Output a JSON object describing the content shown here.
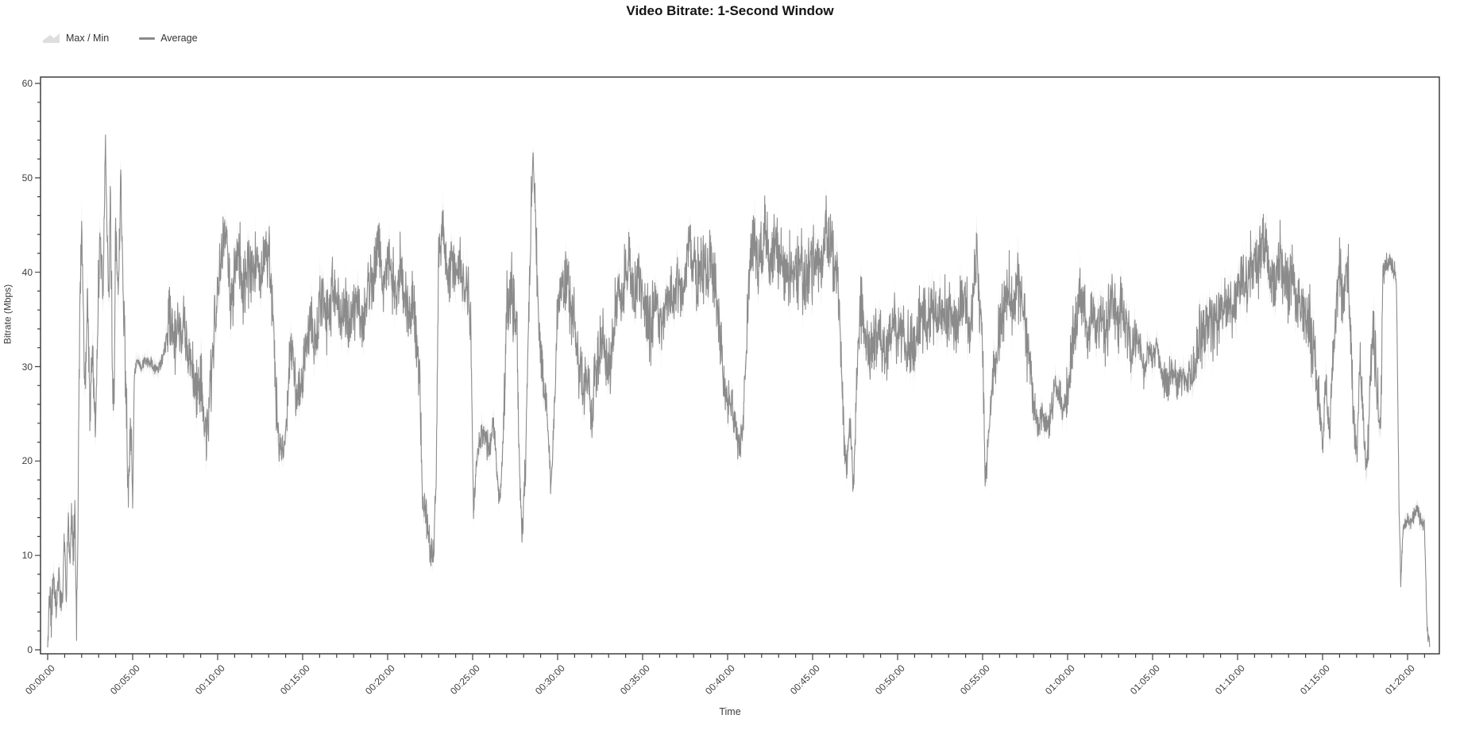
{
  "chart_data": {
    "type": "line",
    "title": "Video Bitrate: 1-Second Window",
    "xlabel": "Time",
    "ylabel": "Bitrate (Mbps)",
    "legend": [
      {
        "label": "Max / Min",
        "swatch": "band-area-icon"
      },
      {
        "label": "Average",
        "swatch": "line-icon"
      }
    ],
    "colors": {
      "band": "#e8e8e8",
      "line": "#8b8b8b",
      "axis": "#3f3f3f",
      "text": "#3d3d3d",
      "title": "#141414"
    },
    "ylim": [
      0,
      60.8
    ],
    "xlim_minutes": [
      0,
      81.7
    ],
    "y_ticks": [
      0,
      10,
      20,
      30,
      40,
      50,
      60
    ],
    "y_minor_step": 2,
    "x_minor_step_minutes": 1,
    "x_ticks": [
      {
        "t": 0,
        "label": "00:00:00"
      },
      {
        "t": 5,
        "label": "00:05:00"
      },
      {
        "t": 10,
        "label": "00:10:00"
      },
      {
        "t": 15,
        "label": "00:15:00"
      },
      {
        "t": 20,
        "label": "00:20:00"
      },
      {
        "t": 25,
        "label": "00:25:00"
      },
      {
        "t": 30,
        "label": "00:30:00"
      },
      {
        "t": 35,
        "label": "00:35:00"
      },
      {
        "t": 40,
        "label": "00:40:00"
      },
      {
        "t": 45,
        "label": "00:45:00"
      },
      {
        "t": 50,
        "label": "00:50:00"
      },
      {
        "t": 55,
        "label": "00:55:00"
      },
      {
        "t": 60,
        "label": "01:00:00"
      },
      {
        "t": 65,
        "label": "01:05:00"
      },
      {
        "t": 70,
        "label": "01:10:00"
      },
      {
        "t": 75,
        "label": "01:15:00"
      },
      {
        "t": 80,
        "label": "01:20:00"
      }
    ],
    "duration_minutes": 81.3,
    "sampling_seconds": 1,
    "texture": {
      "seed": 7,
      "default_amp": 2.6,
      "band_base": 0.55,
      "band_extra": 2.2,
      "smooth_ranges": [
        [
          0,
          1.8,
          1.6
        ],
        [
          3.3,
          3.5,
          1.0
        ],
        [
          4.95,
          6.95,
          0.55
        ],
        [
          13.55,
          14.05,
          1.2
        ],
        [
          22.0,
          22.95,
          1.5
        ],
        [
          24.95,
          26.8,
          1.2
        ],
        [
          27.7,
          28.3,
          1.5
        ],
        [
          28.45,
          28.65,
          0.8
        ],
        [
          29.25,
          29.95,
          1.3
        ],
        [
          39.6,
          41.1,
          1.8
        ],
        [
          46.7,
          47.7,
          1.8
        ],
        [
          55.05,
          55.6,
          1.5
        ],
        [
          57.9,
          59.9,
          1.4
        ],
        [
          64.0,
          67.4,
          1.5
        ],
        [
          74.7,
          75.7,
          1.8
        ],
        [
          76.7,
          77.9,
          1.9
        ],
        [
          78.5,
          79.45,
          0.9
        ],
        [
          79.45,
          81.05,
          0.6
        ],
        [
          81.05,
          81.3,
          0.4
        ]
      ]
    },
    "average_anchors_min_mbps": [
      [
        0,
        0.5
      ],
      [
        0.1,
        6
      ],
      [
        0.2,
        3.5
      ],
      [
        0.35,
        7.5
      ],
      [
        0.5,
        4
      ],
      [
        0.65,
        8
      ],
      [
        0.8,
        4.5
      ],
      [
        0.9,
        7
      ],
      [
        1,
        12
      ],
      [
        1.1,
        6
      ],
      [
        1.2,
        14
      ],
      [
        1.3,
        8
      ],
      [
        1.4,
        16
      ],
      [
        1.5,
        9
      ],
      [
        1.6,
        15
      ],
      [
        1.7,
        2.5
      ],
      [
        1.8,
        16
      ],
      [
        1.9,
        38
      ],
      [
        2,
        44
      ],
      [
        2.1,
        34
      ],
      [
        2.2,
        28
      ],
      [
        2.35,
        37
      ],
      [
        2.5,
        26
      ],
      [
        2.65,
        33
      ],
      [
        2.8,
        22
      ],
      [
        2.95,
        35
      ],
      [
        3.1,
        44
      ],
      [
        3.25,
        38
      ],
      [
        3.4,
        54
      ],
      [
        3.5,
        43
      ],
      [
        3.6,
        38
      ],
      [
        3.7,
        48
      ],
      [
        3.8,
        31
      ],
      [
        3.9,
        27
      ],
      [
        4,
        43
      ],
      [
        4.15,
        38
      ],
      [
        4.3,
        50
      ],
      [
        4.45,
        38
      ],
      [
        4.6,
        28
      ],
      [
        4.75,
        15
      ],
      [
        4.9,
        25
      ],
      [
        5,
        15
      ],
      [
        5.1,
        29
      ],
      [
        5.25,
        31
      ],
      [
        5.5,
        30
      ],
      [
        5.75,
        30.5
      ],
      [
        6,
        30.5
      ],
      [
        6.25,
        30
      ],
      [
        6.5,
        29.5
      ],
      [
        6.75,
        31
      ],
      [
        7,
        33
      ],
      [
        7.25,
        35.5
      ],
      [
        7.5,
        33
      ],
      [
        7.75,
        35
      ],
      [
        8,
        34
      ],
      [
        8.25,
        32
      ],
      [
        8.5,
        30
      ],
      [
        8.75,
        27
      ],
      [
        9,
        29
      ],
      [
        9.25,
        22
      ],
      [
        9.5,
        26
      ],
      [
        9.75,
        33
      ],
      [
        10,
        38
      ],
      [
        10.25,
        42
      ],
      [
        10.5,
        44
      ],
      [
        10.75,
        38
      ],
      [
        11,
        40
      ],
      [
        11.25,
        43
      ],
      [
        11.5,
        38
      ],
      [
        11.75,
        41
      ],
      [
        12,
        39
      ],
      [
        12.25,
        42
      ],
      [
        12.5,
        39
      ],
      [
        12.75,
        42
      ],
      [
        13,
        42
      ],
      [
        13.2,
        37
      ],
      [
        13.4,
        29
      ],
      [
        13.6,
        22
      ],
      [
        13.8,
        21
      ],
      [
        14,
        23
      ],
      [
        14.2,
        31
      ],
      [
        14.4,
        32
      ],
      [
        14.6,
        27
      ],
      [
        14.8,
        26
      ],
      [
        15,
        30
      ],
      [
        15.25,
        33
      ],
      [
        15.5,
        34
      ],
      [
        15.75,
        32
      ],
      [
        16,
        36
      ],
      [
        16.25,
        37
      ],
      [
        16.5,
        35
      ],
      [
        16.75,
        38
      ],
      [
        17,
        37
      ],
      [
        17.25,
        35
      ],
      [
        17.5,
        37
      ],
      [
        17.75,
        34
      ],
      [
        18,
        36
      ],
      [
        18.25,
        37
      ],
      [
        18.5,
        34
      ],
      [
        18.75,
        37
      ],
      [
        19,
        38
      ],
      [
        19.25,
        41
      ],
      [
        19.5,
        43
      ],
      [
        19.75,
        38
      ],
      [
        20,
        42
      ],
      [
        20.25,
        40
      ],
      [
        20.5,
        38
      ],
      [
        20.75,
        40
      ],
      [
        21,
        38
      ],
      [
        21.25,
        35
      ],
      [
        21.5,
        36
      ],
      [
        21.75,
        33
      ],
      [
        21.9,
        28
      ],
      [
        22.05,
        16
      ],
      [
        22.25,
        14
      ],
      [
        22.5,
        11
      ],
      [
        22.7,
        10
      ],
      [
        22.85,
        18
      ],
      [
        23,
        41
      ],
      [
        23.2,
        44
      ],
      [
        23.4,
        42
      ],
      [
        23.6,
        40
      ],
      [
        23.8,
        41
      ],
      [
        24,
        39
      ],
      [
        24.25,
        40
      ],
      [
        24.5,
        38
      ],
      [
        24.75,
        39
      ],
      [
        24.9,
        33
      ],
      [
        25.05,
        14
      ],
      [
        25.2,
        20
      ],
      [
        25.4,
        22
      ],
      [
        25.6,
        23
      ],
      [
        25.8,
        22
      ],
      [
        26,
        21
      ],
      [
        26.2,
        24
      ],
      [
        26.4,
        20
      ],
      [
        26.6,
        16
      ],
      [
        26.8,
        22
      ],
      [
        27,
        36
      ],
      [
        27.2,
        38
      ],
      [
        27.4,
        37
      ],
      [
        27.6,
        34
      ],
      [
        27.75,
        20
      ],
      [
        27.9,
        12
      ],
      [
        28.1,
        19
      ],
      [
        28.35,
        40
      ],
      [
        28.55,
        52.5
      ],
      [
        28.75,
        43
      ],
      [
        29,
        30
      ],
      [
        29.2,
        28
      ],
      [
        29.4,
        25
      ],
      [
        29.6,
        17
      ],
      [
        29.8,
        25
      ],
      [
        30,
        36
      ],
      [
        30.2,
        39
      ],
      [
        30.4,
        40
      ],
      [
        30.6,
        38
      ],
      [
        30.8,
        36
      ],
      [
        31,
        34
      ],
      [
        31.25,
        30
      ],
      [
        31.5,
        28
      ],
      [
        31.75,
        29
      ],
      [
        32,
        25
      ],
      [
        32.25,
        28
      ],
      [
        32.5,
        31
      ],
      [
        32.75,
        33
      ],
      [
        33,
        29
      ],
      [
        33.25,
        32
      ],
      [
        33.5,
        37
      ],
      [
        33.75,
        37
      ],
      [
        34,
        39
      ],
      [
        34.25,
        41
      ],
      [
        34.5,
        38
      ],
      [
        34.75,
        40
      ],
      [
        35,
        38
      ],
      [
        35.25,
        36
      ],
      [
        35.5,
        34
      ],
      [
        35.75,
        37
      ],
      [
        36,
        34
      ],
      [
        36.25,
        36
      ],
      [
        36.5,
        38
      ],
      [
        36.75,
        37
      ],
      [
        37,
        40
      ],
      [
        37.25,
        38
      ],
      [
        37.5,
        40
      ],
      [
        37.75,
        42
      ],
      [
        38,
        41
      ],
      [
        38.25,
        39
      ],
      [
        38.5,
        41
      ],
      [
        38.75,
        40
      ],
      [
        39,
        41
      ],
      [
        39.25,
        38
      ],
      [
        39.5,
        35
      ],
      [
        39.75,
        28
      ],
      [
        40,
        27
      ],
      [
        40.25,
        26
      ],
      [
        40.5,
        23
      ],
      [
        40.75,
        21
      ],
      [
        41,
        27
      ],
      [
        41.2,
        36
      ],
      [
        41.4,
        43
      ],
      [
        41.6,
        44
      ],
      [
        41.8,
        41
      ],
      [
        42,
        42
      ],
      [
        42.25,
        44
      ],
      [
        42.5,
        41
      ],
      [
        42.75,
        43
      ],
      [
        43,
        42
      ],
      [
        43.25,
        40
      ],
      [
        43.5,
        41
      ],
      [
        43.75,
        40
      ],
      [
        44,
        40
      ],
      [
        44.25,
        41
      ],
      [
        44.5,
        39
      ],
      [
        44.75,
        40
      ],
      [
        45,
        41
      ],
      [
        45.25,
        42
      ],
      [
        45.5,
        40
      ],
      [
        45.75,
        44
      ],
      [
        46,
        43
      ],
      [
        46.25,
        41
      ],
      [
        46.5,
        39
      ],
      [
        46.7,
        30
      ],
      [
        46.85,
        22
      ],
      [
        47,
        20
      ],
      [
        47.2,
        23
      ],
      [
        47.4,
        17
      ],
      [
        47.6,
        29
      ],
      [
        47.8,
        36
      ],
      [
        48,
        34
      ],
      [
        48.25,
        31
      ],
      [
        48.5,
        32
      ],
      [
        48.75,
        34
      ],
      [
        49,
        33
      ],
      [
        49.25,
        31
      ],
      [
        49.5,
        32
      ],
      [
        49.75,
        34
      ],
      [
        50,
        33
      ],
      [
        50.25,
        34
      ],
      [
        50.5,
        32
      ],
      [
        50.75,
        33
      ],
      [
        51,
        32
      ],
      [
        51.25,
        34
      ],
      [
        51.5,
        36
      ],
      [
        51.75,
        34
      ],
      [
        52,
        36
      ],
      [
        52.25,
        34
      ],
      [
        52.5,
        36
      ],
      [
        52.75,
        35
      ],
      [
        53,
        36
      ],
      [
        53.25,
        35
      ],
      [
        53.5,
        34
      ],
      [
        53.75,
        37
      ],
      [
        54,
        36
      ],
      [
        54.25,
        34
      ],
      [
        54.5,
        38
      ],
      [
        54.65,
        43
      ],
      [
        54.8,
        38
      ],
      [
        55,
        33
      ],
      [
        55.15,
        18
      ],
      [
        55.3,
        21
      ],
      [
        55.5,
        27
      ],
      [
        55.75,
        31
      ],
      [
        56,
        34
      ],
      [
        56.25,
        36
      ],
      [
        56.5,
        38
      ],
      [
        56.75,
        36
      ],
      [
        57,
        39
      ],
      [
        57.25,
        37
      ],
      [
        57.5,
        34
      ],
      [
        57.75,
        30
      ],
      [
        58,
        26
      ],
      [
        58.25,
        24
      ],
      [
        58.5,
        25
      ],
      [
        58.75,
        23
      ],
      [
        59,
        25
      ],
      [
        59.25,
        28
      ],
      [
        59.5,
        27
      ],
      [
        59.75,
        25
      ],
      [
        60,
        27
      ],
      [
        60.25,
        31
      ],
      [
        60.5,
        35
      ],
      [
        60.75,
        37
      ],
      [
        61,
        36
      ],
      [
        61.25,
        34
      ],
      [
        61.5,
        36
      ],
      [
        61.75,
        33
      ],
      [
        62,
        36
      ],
      [
        62.25,
        34
      ],
      [
        62.5,
        37
      ],
      [
        62.75,
        36
      ],
      [
        63,
        34
      ],
      [
        63.25,
        36
      ],
      [
        63.5,
        33
      ],
      [
        63.75,
        31
      ],
      [
        64,
        33
      ],
      [
        64.25,
        32
      ],
      [
        64.5,
        30
      ],
      [
        64.75,
        32
      ],
      [
        65,
        31
      ],
      [
        65.25,
        32
      ],
      [
        65.5,
        30
      ],
      [
        65.75,
        28
      ],
      [
        66,
        29
      ],
      [
        66.25,
        30
      ],
      [
        66.5,
        28
      ],
      [
        66.75,
        29
      ],
      [
        67,
        28
      ],
      [
        67.25,
        29
      ],
      [
        67.5,
        31
      ],
      [
        67.75,
        34
      ],
      [
        68,
        34
      ],
      [
        68.25,
        35
      ],
      [
        68.5,
        33
      ],
      [
        68.75,
        35
      ],
      [
        69,
        37
      ],
      [
        69.25,
        36
      ],
      [
        69.5,
        37
      ],
      [
        69.75,
        36
      ],
      [
        70,
        38
      ],
      [
        70.25,
        40
      ],
      [
        70.5,
        38
      ],
      [
        70.75,
        40
      ],
      [
        71,
        40
      ],
      [
        71.25,
        42
      ],
      [
        71.5,
        44
      ],
      [
        71.75,
        41
      ],
      [
        72,
        38
      ],
      [
        72.25,
        40
      ],
      [
        72.5,
        42
      ],
      [
        72.75,
        39
      ],
      [
        73,
        38
      ],
      [
        73.25,
        40
      ],
      [
        73.5,
        37
      ],
      [
        73.75,
        35
      ],
      [
        74,
        36
      ],
      [
        74.25,
        34
      ],
      [
        74.5,
        32
      ],
      [
        74.75,
        27
      ],
      [
        75,
        22
      ],
      [
        75.2,
        28
      ],
      [
        75.4,
        23
      ],
      [
        75.6,
        30
      ],
      [
        75.8,
        36
      ],
      [
        76,
        41
      ],
      [
        76.2,
        36
      ],
      [
        76.4,
        42
      ],
      [
        76.6,
        37
      ],
      [
        76.8,
        25
      ],
      [
        77,
        20
      ],
      [
        77.2,
        31
      ],
      [
        77.4,
        24
      ],
      [
        77.6,
        18
      ],
      [
        77.8,
        29
      ],
      [
        78,
        34
      ],
      [
        78.2,
        28
      ],
      [
        78.4,
        23
      ],
      [
        78.55,
        40
      ],
      [
        78.8,
        41
      ],
      [
        79.1,
        41
      ],
      [
        79.35,
        39
      ],
      [
        79.5,
        15
      ],
      [
        79.6,
        7.5
      ],
      [
        79.75,
        13
      ],
      [
        80,
        14
      ],
      [
        80.25,
        13.5
      ],
      [
        80.5,
        15
      ],
      [
        80.75,
        14
      ],
      [
        81,
        13
      ],
      [
        81.15,
        2
      ],
      [
        81.3,
        0.5
      ]
    ]
  }
}
